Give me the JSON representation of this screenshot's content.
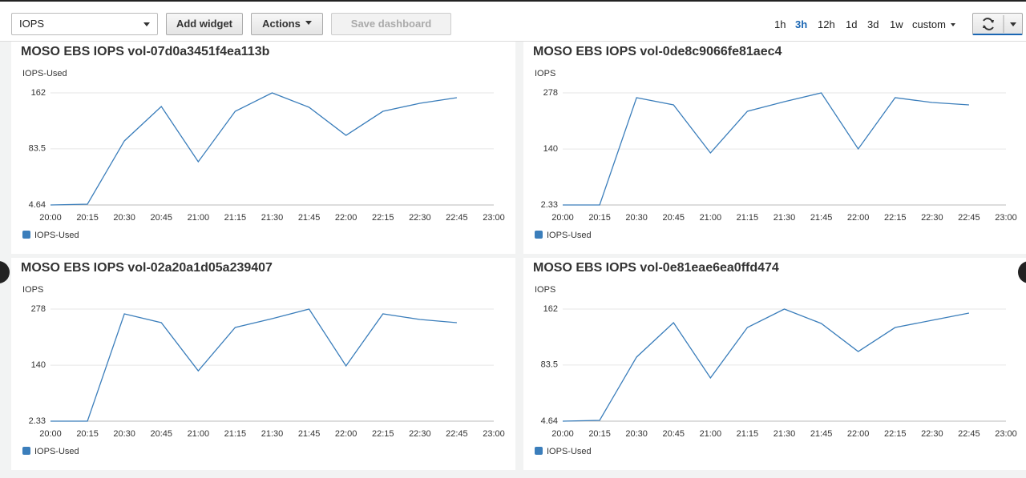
{
  "toolbar": {
    "metric_select": "IOPS",
    "buttons": [
      "Add widget",
      "Actions",
      "Save dashboard"
    ],
    "time_ranges": [
      "1h",
      "3h",
      "12h",
      "1d",
      "3d",
      "1w",
      "custom"
    ],
    "selected_range": 1
  },
  "chart_data": [
    {
      "type": "line",
      "title": "MOSO EBS IOPS vol-07d0a3451f4ea113b",
      "y_label": "IOPS-Used",
      "categories": [
        "20:00",
        "20:15",
        "20:30",
        "20:45",
        "21:00",
        "21:15",
        "21:30",
        "21:45",
        "22:00",
        "22:15",
        "22:30",
        "22:45",
        "23:00"
      ],
      "series": [
        {
          "name": "IOPS-Used",
          "color": "#3b7ebb",
          "values": [
            4.64,
            5.8,
            94.6,
            142.9,
            65.3,
            136.1,
            162,
            141.8,
            102.4,
            136.1,
            147.4,
            155.3,
            null
          ]
        }
      ],
      "ylim": [
        4.64,
        162
      ],
      "yticks": [
        4.64,
        83.5,
        162
      ],
      "grid": true
    },
    {
      "type": "line",
      "title": "MOSO EBS IOPS vol-0de8c9066fe81aec4",
      "y_label": "IOPS",
      "categories": [
        "20:00",
        "20:15",
        "20:30",
        "20:45",
        "21:00",
        "21:15",
        "21:30",
        "21:45",
        "22:00",
        "22:15",
        "22:30",
        "22:45",
        "23:00"
      ],
      "series": [
        {
          "name": "IOPS-Used",
          "color": "#3b7ebb",
          "values": [
            2.33,
            2.33,
            266.2,
            248.5,
            130.3,
            232.7,
            256.3,
            278,
            140.2,
            266.2,
            254.4,
            248.5,
            null
          ]
        }
      ],
      "ylim": [
        2.33,
        278
      ],
      "yticks": [
        2.33,
        140,
        278
      ],
      "grid": true
    },
    {
      "type": "line",
      "title": "MOSO EBS IOPS vol-02a20a1d05a239407",
      "y_label": "IOPS",
      "categories": [
        "20:00",
        "20:15",
        "20:30",
        "20:45",
        "21:00",
        "21:15",
        "21:30",
        "21:45",
        "22:00",
        "22:15",
        "22:30",
        "22:45",
        "23:00"
      ],
      "series": [
        {
          "name": "IOPS-Used",
          "color": "#3b7ebb",
          "values": [
            2.33,
            2.33,
            266.2,
            244.5,
            126,
            232.7,
            254.4,
            278,
            138.2,
            266.2,
            252.4,
            244.5,
            null
          ]
        }
      ],
      "ylim": [
        2.33,
        278
      ],
      "yticks": [
        2.33,
        140,
        278
      ],
      "grid": true
    },
    {
      "type": "line",
      "title": "MOSO EBS IOPS vol-0e81eae6ea0ffd474",
      "y_label": "IOPS",
      "categories": [
        "20:00",
        "20:15",
        "20:30",
        "20:45",
        "21:00",
        "21:15",
        "21:30",
        "21:45",
        "22:00",
        "22:15",
        "22:30",
        "22:45",
        "23:00"
      ],
      "series": [
        {
          "name": "IOPS-Used",
          "color": "#3b7ebb",
          "values": [
            4.64,
            5.8,
            94.6,
            142.9,
            65.3,
            136.1,
            162,
            141.8,
            102.4,
            136.1,
            146.3,
            156.4,
            null
          ]
        }
      ],
      "ylim": [
        4.64,
        162
      ],
      "yticks": [
        4.64,
        83.5,
        162
      ],
      "grid": true
    }
  ]
}
